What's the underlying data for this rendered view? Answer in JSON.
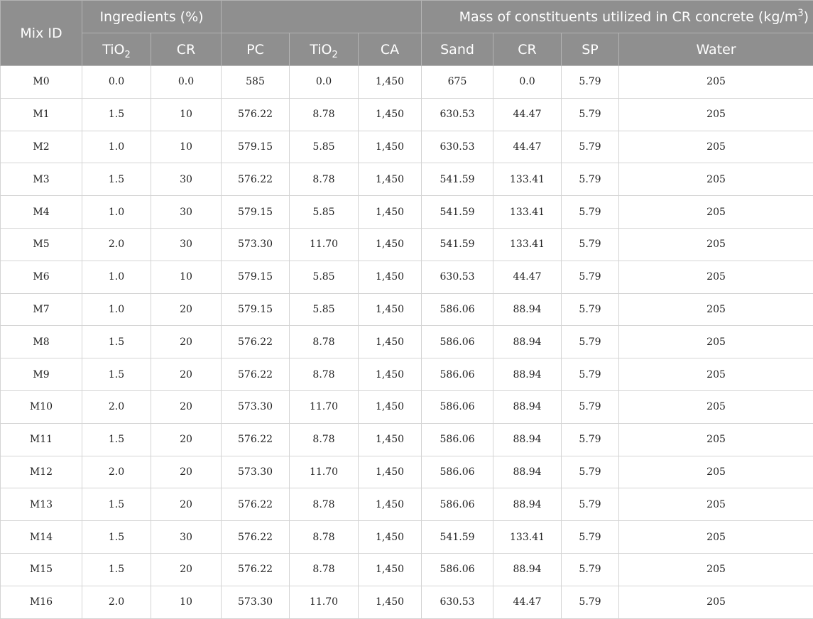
{
  "table": {
    "header": {
      "mix_id": "Mix ID",
      "ingredients_group": "Ingredients (%)",
      "mass_group_prefix": "Mass of constituents utilized in CR concrete (kg/m",
      "mass_group_sup": "3",
      "mass_group_suffix": ")",
      "tio2_base": "TiO",
      "tio2_sub": "2",
      "cr": "CR",
      "pc": "PC",
      "ca": "CA",
      "sand": "Sand",
      "sp": "SP",
      "water": "Water"
    },
    "rows": [
      [
        "M0",
        "0.0",
        "0.0",
        "585",
        "0.0",
        "1,450",
        "675",
        "0.0",
        "5.79",
        "205"
      ],
      [
        "M1",
        "1.5",
        "10",
        "576.22",
        "8.78",
        "1,450",
        "630.53",
        "44.47",
        "5.79",
        "205"
      ],
      [
        "M2",
        "1.0",
        "10",
        "579.15",
        "5.85",
        "1,450",
        "630.53",
        "44.47",
        "5.79",
        "205"
      ],
      [
        "M3",
        "1.5",
        "30",
        "576.22",
        "8.78",
        "1,450",
        "541.59",
        "133.41",
        "5.79",
        "205"
      ],
      [
        "M4",
        "1.0",
        "30",
        "579.15",
        "5.85",
        "1,450",
        "541.59",
        "133.41",
        "5.79",
        "205"
      ],
      [
        "M5",
        "2.0",
        "30",
        "573.30",
        "11.70",
        "1,450",
        "541.59",
        "133.41",
        "5.79",
        "205"
      ],
      [
        "M6",
        "1.0",
        "10",
        "579.15",
        "5.85",
        "1,450",
        "630.53",
        "44.47",
        "5.79",
        "205"
      ],
      [
        "M7",
        "1.0",
        "20",
        "579.15",
        "5.85",
        "1,450",
        "586.06",
        "88.94",
        "5.79",
        "205"
      ],
      [
        "M8",
        "1.5",
        "20",
        "576.22",
        "8.78",
        "1,450",
        "586.06",
        "88.94",
        "5.79",
        "205"
      ],
      [
        "M9",
        "1.5",
        "20",
        "576.22",
        "8.78",
        "1,450",
        "586.06",
        "88.94",
        "5.79",
        "205"
      ],
      [
        "M10",
        "2.0",
        "20",
        "573.30",
        "11.70",
        "1,450",
        "586.06",
        "88.94",
        "5.79",
        "205"
      ],
      [
        "M11",
        "1.5",
        "20",
        "576.22",
        "8.78",
        "1,450",
        "586.06",
        "88.94",
        "5.79",
        "205"
      ],
      [
        "M12",
        "2.0",
        "20",
        "573.30",
        "11.70",
        "1,450",
        "586.06",
        "88.94",
        "5.79",
        "205"
      ],
      [
        "M13",
        "1.5",
        "20",
        "576.22",
        "8.78",
        "1,450",
        "586.06",
        "88.94",
        "5.79",
        "205"
      ],
      [
        "M14",
        "1.5",
        "30",
        "576.22",
        "8.78",
        "1,450",
        "541.59",
        "133.41",
        "5.79",
        "205"
      ],
      [
        "M15",
        "1.5",
        "20",
        "576.22",
        "8.78",
        "1,450",
        "586.06",
        "88.94",
        "5.79",
        "205"
      ],
      [
        "M16",
        "2.0",
        "10",
        "573.30",
        "11.70",
        "1,450",
        "630.53",
        "44.47",
        "5.79",
        "205"
      ]
    ]
  }
}
